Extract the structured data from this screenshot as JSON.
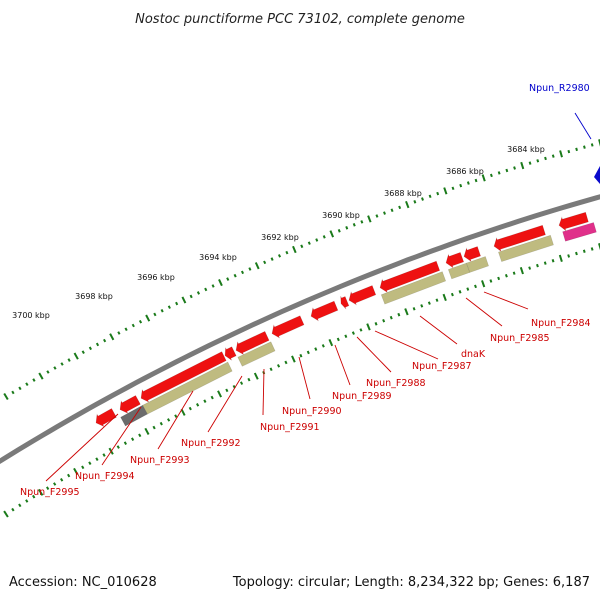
{
  "title": "Nostoc punctiforme PCC 73102, complete genome",
  "footer": {
    "accession": "Accession: NC_010628",
    "summary": "Topology: circular; Length: 8,234,322 bp; Genes: 6,187"
  },
  "colors": {
    "background": "#ffffff",
    "backbone": "#7a7a7a",
    "tick": "#1a7a1a",
    "gene_red": "#ee1111",
    "gene_olive": "#bfbb80",
    "gene_gray": "#6b6b6b",
    "gene_pink": "#e0308a",
    "gene_blue": "#0a0acc",
    "label_red": "#cc0000",
    "label_blue": "#0000cc"
  },
  "scale_labels": [
    "3684 kbp",
    "3686 kbp",
    "3688 kbp",
    "3690 kbp",
    "3692 kbp",
    "3694 kbp",
    "3696 kbp",
    "3698 kbp",
    "3700 kbp"
  ],
  "gene_labels": [
    {
      "text": "Npun_R2980",
      "color": "blue"
    },
    {
      "text": "Npun_F2984",
      "color": "red"
    },
    {
      "text": "Npun_F2985",
      "color": "red"
    },
    {
      "text": "dnaK",
      "color": "red"
    },
    {
      "text": "Npun_F2987",
      "color": "red"
    },
    {
      "text": "Npun_F2988",
      "color": "red"
    },
    {
      "text": "Npun_F2989",
      "color": "red"
    },
    {
      "text": "Npun_F2990",
      "color": "red"
    },
    {
      "text": "Npun_F2991",
      "color": "red"
    },
    {
      "text": "Npun_F2992",
      "color": "red"
    },
    {
      "text": "Npun_F2993",
      "color": "red"
    },
    {
      "text": "Npun_F2994",
      "color": "red"
    },
    {
      "text": "Npun_F2995",
      "color": "red"
    }
  ]
}
